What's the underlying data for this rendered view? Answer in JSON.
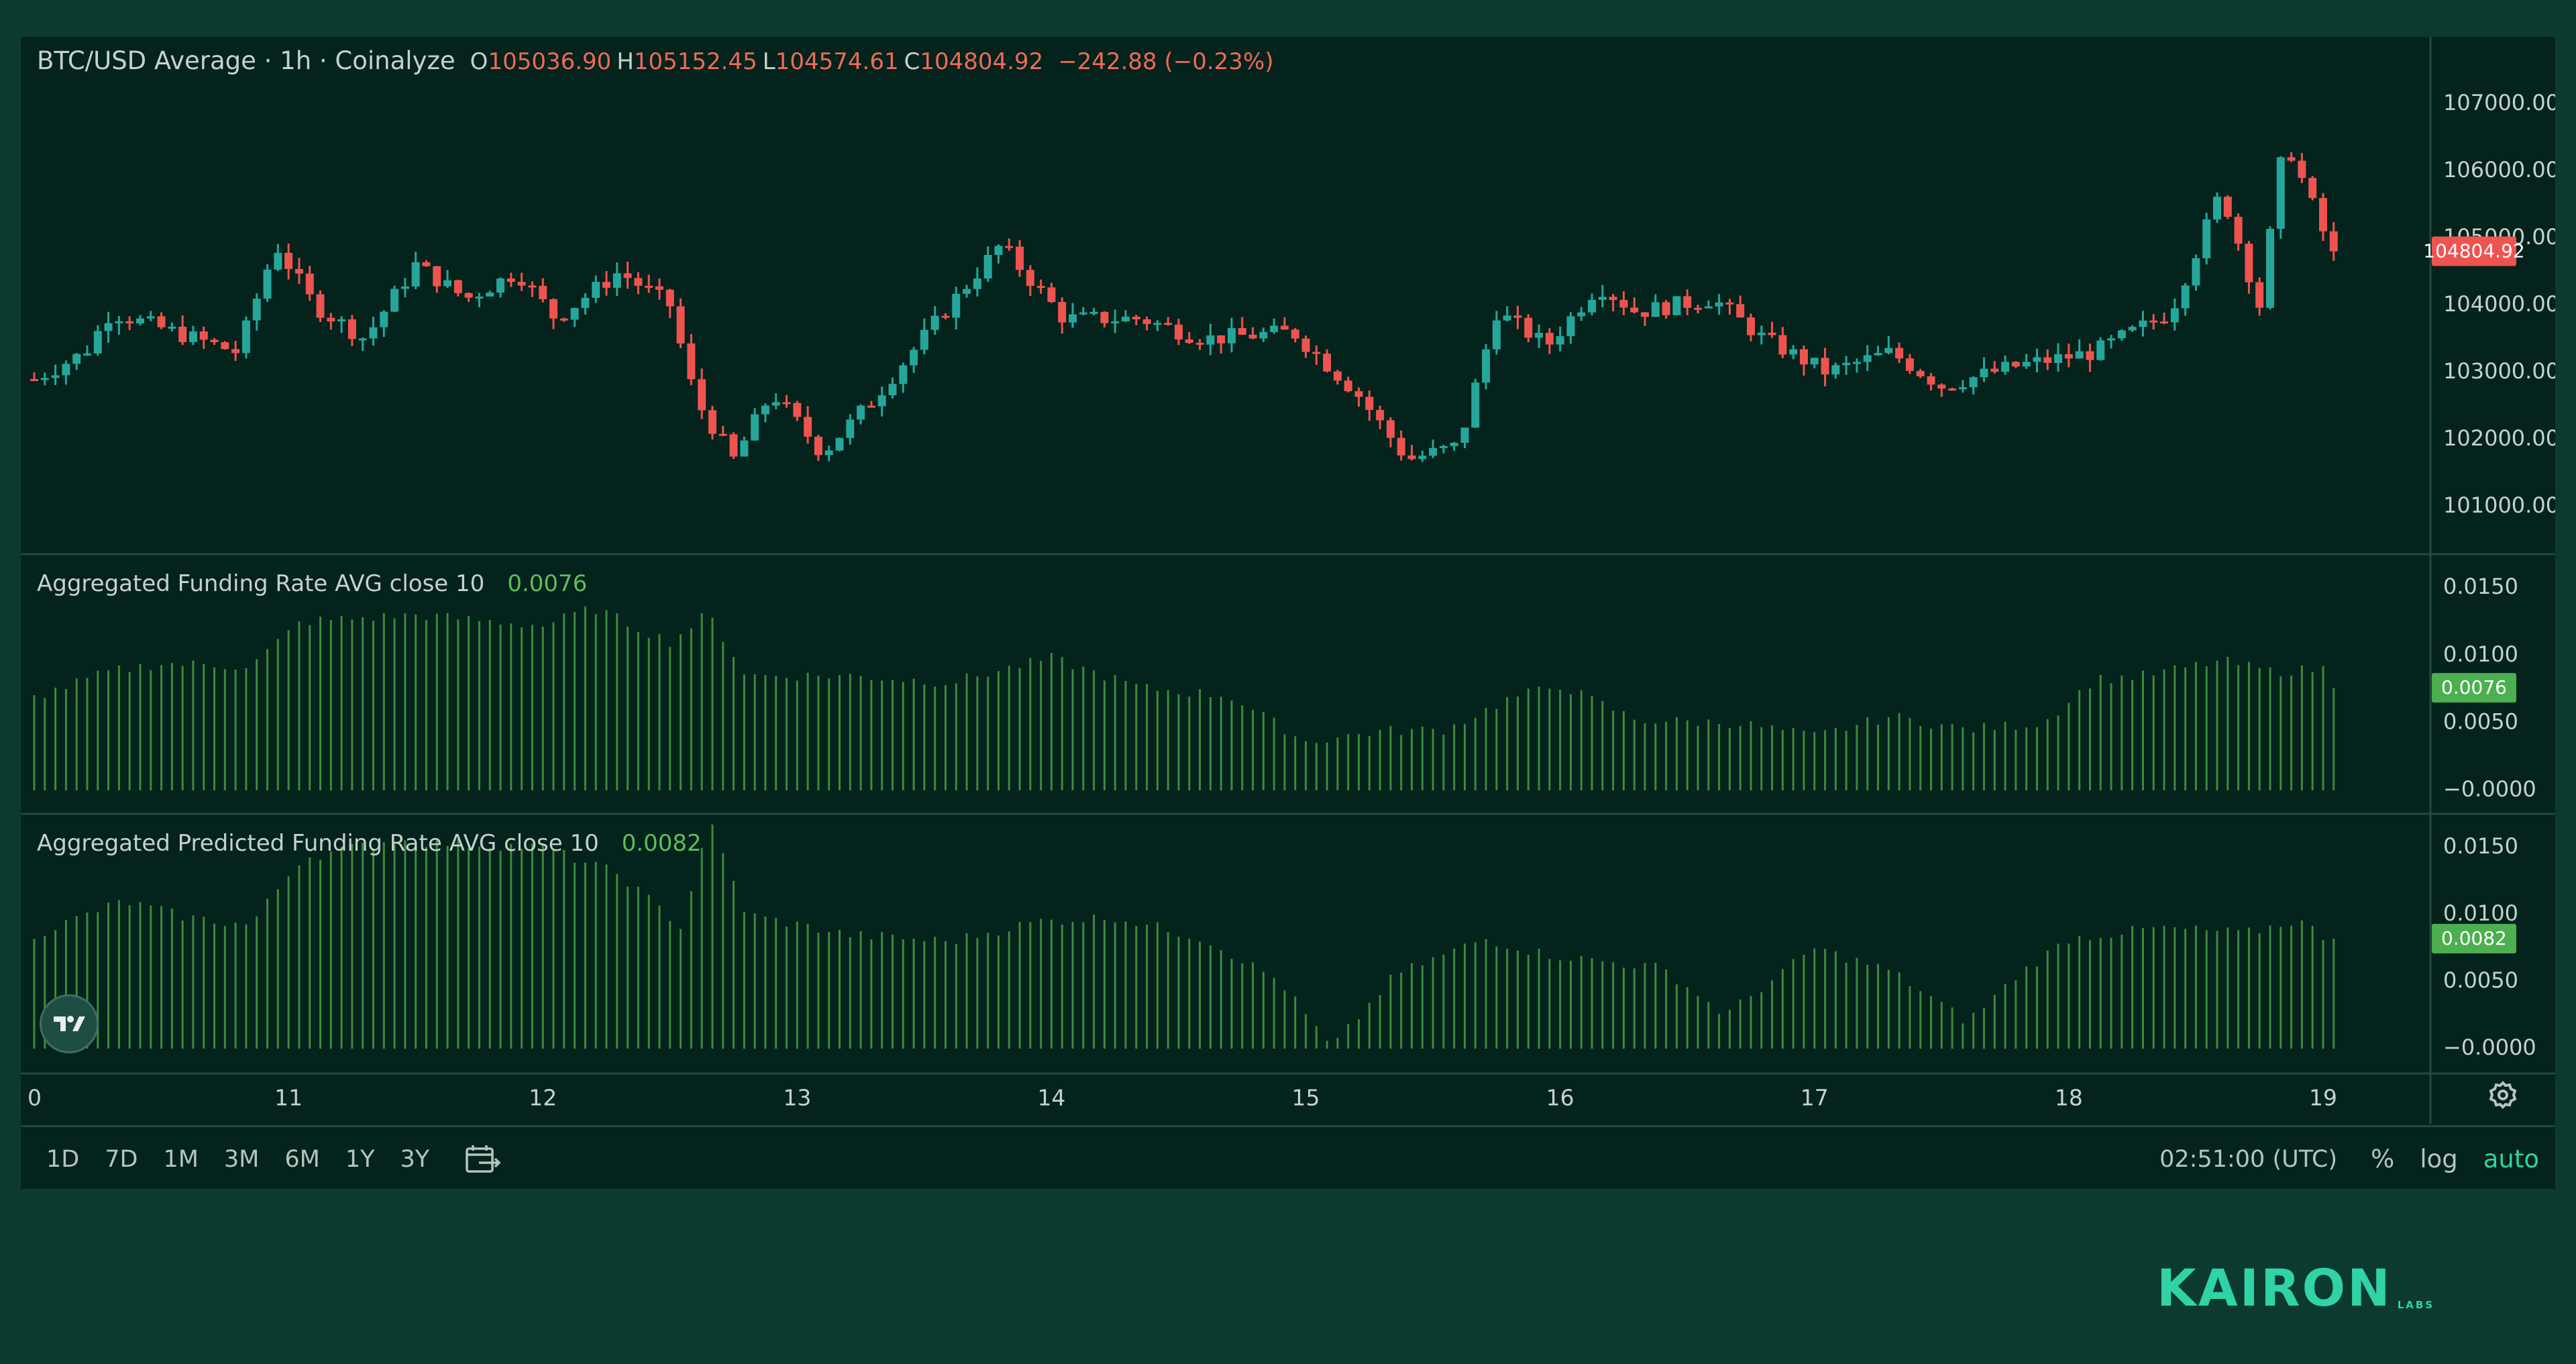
{
  "main_pane": {
    "title": "BTC/USD Average · 1h · Coinalyze",
    "ohlc": {
      "o_label": "O",
      "o_value": "105036.90",
      "h_label": "H",
      "h_value": "105152.45",
      "l_label": "L",
      "l_value": "104574.61",
      "c_label": "C",
      "c_value": "104804.92",
      "change": "−242.88 (−0.23%)"
    },
    "price_label": "104804.92"
  },
  "funding_pane": {
    "title": "Aggregated Funding Rate AVG close 10",
    "value": "0.0076"
  },
  "predicted_pane": {
    "title": "Aggregated Predicted Funding Rate AVG close 10",
    "value": "0.0082"
  },
  "bottom_bar": {
    "ranges": [
      "1D",
      "7D",
      "1M",
      "3M",
      "6M",
      "1Y",
      "3Y"
    ],
    "time": "02:51:00 (UTC)",
    "percent_label": "%",
    "log_label": "log",
    "auto_label": "auto"
  },
  "brand": {
    "name": "KAIRON",
    "sub": "LABS"
  },
  "colors": {
    "up": "#26a69a",
    "down": "#ef5350",
    "indicator": "#3f8a3a",
    "indicator_label": "#5cbf5a",
    "background": "#03231c",
    "accent": "#2fd3a6"
  },
  "icons": {
    "calendar": "calendar-range-icon",
    "settings": "gear-icon",
    "tradingview": "tradingview-logo-icon"
  },
  "chart_data": [
    {
      "type": "candlestick",
      "title": "BTC/USD Average · 1h · Coinalyze",
      "x_ticks": [
        "0",
        "11",
        "12",
        "13",
        "14",
        "15",
        "16",
        "17",
        "18",
        "19"
      ],
      "y_ticks": [
        "107000.00",
        "106000.00",
        "105000.00",
        "104000.00",
        "103000.00",
        "102000.00",
        "101000.00"
      ],
      "ylim": [
        100400,
        107600
      ],
      "scale": "linear",
      "grid": false,
      "close_path_keypoints": [
        [
          10.0,
          102900
        ],
        [
          10.2,
          103300
        ],
        [
          10.3,
          103900
        ],
        [
          10.55,
          103600
        ],
        [
          10.8,
          103300
        ],
        [
          10.95,
          104900
        ],
        [
          11.1,
          104000
        ],
        [
          11.3,
          103500
        ],
        [
          11.5,
          104600
        ],
        [
          11.7,
          104100
        ],
        [
          11.9,
          104500
        ],
        [
          12.05,
          103800
        ],
        [
          12.3,
          104500
        ],
        [
          12.5,
          104000
        ],
        [
          12.6,
          102600
        ],
        [
          12.75,
          101700
        ],
        [
          12.9,
          102700
        ],
        [
          13.1,
          101800
        ],
        [
          13.3,
          102600
        ],
        [
          13.6,
          104000
        ],
        [
          13.8,
          104900
        ],
        [
          14.05,
          103800
        ],
        [
          14.35,
          103800
        ],
        [
          14.6,
          103500
        ],
        [
          14.95,
          103600
        ],
        [
          15.2,
          102700
        ],
        [
          15.4,
          101700
        ],
        [
          15.6,
          101900
        ],
        [
          15.75,
          103900
        ],
        [
          15.95,
          103400
        ],
        [
          16.15,
          104300
        ],
        [
          16.3,
          103900
        ],
        [
          16.6,
          104100
        ],
        [
          16.8,
          103500
        ],
        [
          17.05,
          103000
        ],
        [
          17.3,
          103300
        ],
        [
          17.5,
          102800
        ],
        [
          17.8,
          103100
        ],
        [
          18.1,
          103300
        ],
        [
          18.4,
          103900
        ],
        [
          18.6,
          105700
        ],
        [
          18.75,
          104000
        ],
        [
          18.85,
          106500
        ],
        [
          19.0,
          105100
        ],
        [
          19.07,
          104805
        ]
      ],
      "last_close": 104804.92
    },
    {
      "type": "bar",
      "title": "Aggregated Funding Rate AVG close 10",
      "y_ticks": [
        "0.0150",
        "0.0100",
        "0.0050",
        "−0.0000"
      ],
      "ylim": [
        -0.0001,
        0.0168
      ],
      "keypoints": [
        [
          10.0,
          0.0069
        ],
        [
          10.3,
          0.0088
        ],
        [
          10.5,
          0.0094
        ],
        [
          10.85,
          0.0092
        ],
        [
          11.05,
          0.0125
        ],
        [
          11.5,
          0.013
        ],
        [
          12.0,
          0.0122
        ],
        [
          12.2,
          0.0135
        ],
        [
          12.5,
          0.011
        ],
        [
          12.65,
          0.0131
        ],
        [
          12.8,
          0.0085
        ],
        [
          13.2,
          0.0085
        ],
        [
          13.6,
          0.008
        ],
        [
          14.0,
          0.0098
        ],
        [
          14.35,
          0.0076
        ],
        [
          14.7,
          0.007
        ],
        [
          15.0,
          0.0036
        ],
        [
          15.3,
          0.0044
        ],
        [
          15.55,
          0.0045
        ],
        [
          15.8,
          0.0068
        ],
        [
          16.0,
          0.0078
        ],
        [
          16.3,
          0.0052
        ],
        [
          16.7,
          0.005
        ],
        [
          17.0,
          0.004
        ],
        [
          17.3,
          0.0055
        ],
        [
          17.6,
          0.0045
        ],
        [
          17.9,
          0.005
        ],
        [
          18.1,
          0.0082
        ],
        [
          18.3,
          0.0085
        ],
        [
          18.6,
          0.0096
        ],
        [
          18.8,
          0.0088
        ],
        [
          19.0,
          0.009
        ],
        [
          19.08,
          0.0076
        ]
      ],
      "last_value": 0.0076
    },
    {
      "type": "bar",
      "title": "Aggregated Predicted Funding Rate AVG close 10",
      "y_ticks": [
        "0.0150",
        "0.0100",
        "0.0050",
        "−0.0000"
      ],
      "ylim": [
        -0.0004,
        0.0168
      ],
      "keypoints": [
        [
          10.0,
          0.0085
        ],
        [
          10.35,
          0.011
        ],
        [
          10.6,
          0.0098
        ],
        [
          10.85,
          0.0092
        ],
        [
          11.05,
          0.0142
        ],
        [
          11.4,
          0.0155
        ],
        [
          12.0,
          0.015
        ],
        [
          12.3,
          0.013
        ],
        [
          12.55,
          0.009
        ],
        [
          12.65,
          0.0172
        ],
        [
          12.8,
          0.01
        ],
        [
          13.2,
          0.0085
        ],
        [
          13.6,
          0.008
        ],
        [
          13.95,
          0.0095
        ],
        [
          14.25,
          0.0098
        ],
        [
          14.6,
          0.0082
        ],
        [
          14.9,
          0.005
        ],
        [
          15.1,
          0.0
        ],
        [
          15.35,
          0.0055
        ],
        [
          15.7,
          0.0082
        ],
        [
          15.95,
          0.007
        ],
        [
          16.4,
          0.006
        ],
        [
          16.65,
          0.0025
        ],
        [
          17.0,
          0.0075
        ],
        [
          17.3,
          0.0058
        ],
        [
          17.6,
          0.002
        ],
        [
          17.8,
          0.0055
        ],
        [
          18.0,
          0.0082
        ],
        [
          18.35,
          0.009
        ],
        [
          18.7,
          0.0086
        ],
        [
          18.9,
          0.0096
        ],
        [
          19.0,
          0.0084
        ],
        [
          19.08,
          0.0082
        ]
      ],
      "last_value": 0.0082
    }
  ]
}
